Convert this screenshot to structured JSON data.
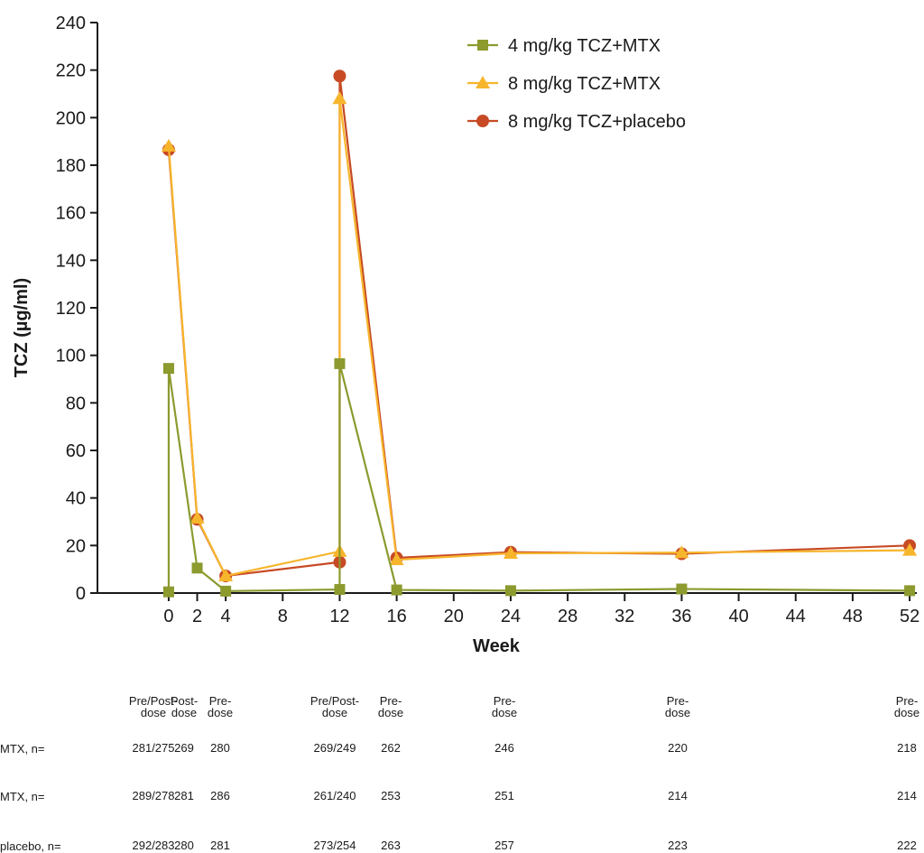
{
  "chart_data": {
    "type": "line",
    "ylabel": "TCZ (µg/ml)",
    "xlabel": "Week",
    "ylim": [
      0,
      240
    ],
    "yticks": [
      0,
      20,
      40,
      60,
      80,
      100,
      120,
      140,
      160,
      180,
      200,
      220,
      240
    ],
    "xlim": [
      -5,
      52.5
    ],
    "xticks": [
      0,
      2,
      4,
      8,
      12,
      16,
      20,
      24,
      28,
      32,
      36,
      40,
      44,
      48,
      52
    ],
    "grid": false,
    "legend_position": "top-right",
    "series": [
      {
        "name": "4 mg/kg TCZ+MTX",
        "color": "#8c9a2e",
        "marker": "square",
        "points": [
          [
            0,
            0.5
          ],
          [
            0,
            94.5
          ],
          [
            2,
            10.5
          ],
          [
            4,
            0.8
          ],
          [
            12,
            1.5
          ],
          [
            12,
            96.5
          ],
          [
            16,
            1.3
          ],
          [
            24,
            1.0
          ],
          [
            36,
            1.7
          ],
          [
            52,
            1.0
          ]
        ]
      },
      {
        "name": "8 mg/kg TCZ+MTX",
        "color": "#f7b52c",
        "marker": "triangle",
        "points": [
          [
            0,
            188.0
          ],
          [
            2,
            31.5
          ],
          [
            4,
            7.2
          ],
          [
            12,
            17.5
          ],
          [
            12,
            208.0
          ],
          [
            16,
            14.0
          ],
          [
            24,
            16.7
          ],
          [
            36,
            17.0
          ],
          [
            52,
            18.0
          ]
        ]
      },
      {
        "name": "8 mg/kg TCZ+placebo",
        "color": "#c74a24",
        "marker": "circle",
        "points": [
          [
            0,
            186.5
          ],
          [
            2,
            31.0
          ],
          [
            4,
            7.2
          ],
          [
            12,
            13.0
          ],
          [
            12,
            217.5
          ],
          [
            16,
            14.8
          ],
          [
            24,
            17.2
          ],
          [
            36,
            16.5
          ],
          [
            52,
            20.0
          ]
        ]
      }
    ]
  },
  "table": {
    "columns": [
      {
        "header": [
          "Pre/Post-",
          "dose"
        ],
        "values": [
          "281/275",
          "289/278",
          "292/283"
        ]
      },
      {
        "header": [
          "Post-",
          "dose"
        ],
        "values": [
          "269",
          "281",
          "280"
        ]
      },
      {
        "header": [
          "Pre-",
          "dose"
        ],
        "values": [
          "280",
          "286",
          "281"
        ]
      },
      {
        "header": [
          "Pre/Post-",
          "dose"
        ],
        "values": [
          "269/249",
          "261/240",
          "273/254"
        ]
      },
      {
        "header": [
          "Pre-",
          "dose"
        ],
        "values": [
          "262",
          "253",
          "263"
        ]
      },
      {
        "header": [
          "Pre-",
          "dose"
        ],
        "values": [
          "246",
          "251",
          "257"
        ]
      },
      {
        "header": [
          "Pre-",
          "dose"
        ],
        "values": [
          "220",
          "214",
          "223"
        ]
      },
      {
        "header": [
          "Pre-",
          "dose"
        ],
        "values": [
          "218",
          "214",
          "222"
        ]
      }
    ],
    "row_labels": [
      "MTX, n=",
      "MTX, n=",
      "placebo, n="
    ]
  }
}
